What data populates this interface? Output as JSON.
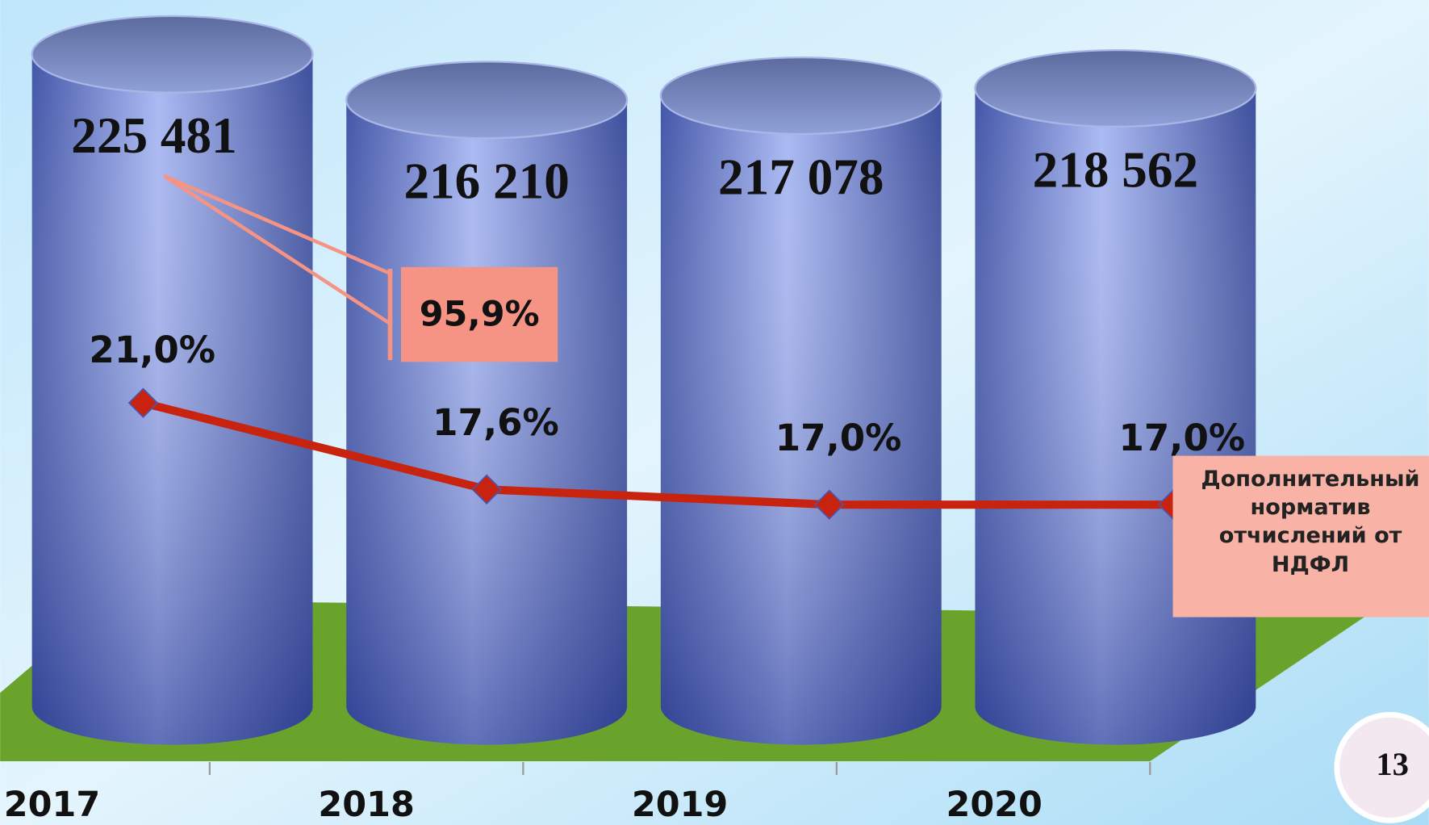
{
  "chart_data": {
    "type": "bar",
    "categories": [
      "2017",
      "2018",
      "2019",
      "2020"
    ],
    "series": [
      {
        "type": "bar",
        "color": "#6f80c8",
        "values": [
          225481,
          216210,
          217078,
          218562
        ],
        "value_labels": [
          "225 481",
          "216 210",
          "217 078",
          "218 562"
        ]
      },
      {
        "type": "line",
        "name": "Дополнительный норматив отчислений от НДФЛ",
        "color": "#c8230f",
        "values": [
          21.0,
          17.6,
          17.0,
          17.0
        ],
        "value_labels": [
          "21,0%",
          "17,6%",
          "17,0%",
          "17,0%"
        ]
      }
    ],
    "annotation": "95,9%"
  },
  "slide_number": "13"
}
